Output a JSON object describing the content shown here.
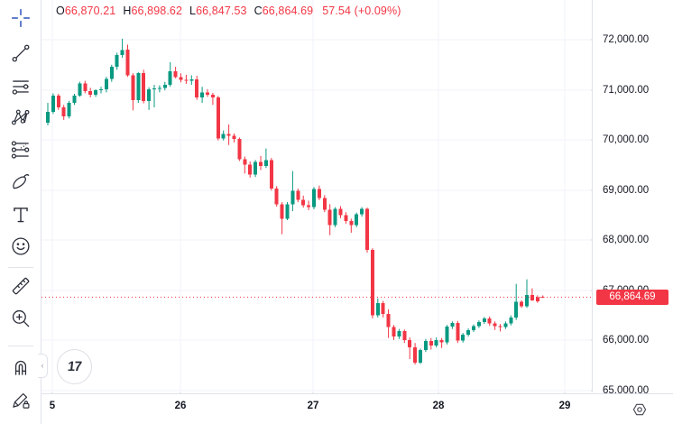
{
  "legend": {
    "o_label": "O",
    "o_value": "66,870.21",
    "h_label": "H",
    "h_value": "66,898.62",
    "l_label": "L",
    "l_value": "66,847.53",
    "c_label": "C",
    "c_value": "66,864.69",
    "change": "57.54 (+0.09%)"
  },
  "toolbar": {
    "tools": [
      "crosshair",
      "trend-line",
      "fib-retracement",
      "xabcd-pattern",
      "projection-forecast",
      "brush",
      "text",
      "emoji",
      "ruler",
      "zoom-in",
      "magnet",
      "drawing-lock"
    ],
    "active_tool": "crosshair",
    "collapse_glyph": "‹"
  },
  "logo": {
    "glyph": "17"
  },
  "colors": {
    "up": "#089981",
    "down": "#F23645",
    "grid": "#f0f3fa",
    "axis_border": "#e0e3eb",
    "axis_text": "#131722",
    "tick": "#d1d4dc",
    "accent_tool": "#4a6cc4",
    "icon": "#2a2e39",
    "last_price_bg": "#F23645"
  },
  "price_axis": {
    "ticks": [
      {
        "label": "72,000.00",
        "value": 72000
      },
      {
        "label": "71,000.00",
        "value": 71000
      },
      {
        "label": "70,000.00",
        "value": 70000
      },
      {
        "label": "69,000.00",
        "value": 69000
      },
      {
        "label": "68,000.00",
        "value": 68000
      },
      {
        "label": "67,000.00",
        "value": 67000
      },
      {
        "label": "66,000.00",
        "value": 66000
      },
      {
        "label": "65,000.00",
        "value": 65000
      }
    ],
    "last": {
      "label": "66,864.69",
      "value": 66864.69
    }
  },
  "time_axis": {
    "ticks": [
      {
        "label": "5",
        "index": 0.85
      },
      {
        "label": "26",
        "index": 24.9
      },
      {
        "label": "27",
        "index": 49.8
      },
      {
        "label": "28",
        "index": 73.4
      },
      {
        "label": "29",
        "index": 97.1
      }
    ]
  },
  "chart_data": {
    "type": "candlestick",
    "interval": "hourly",
    "y_range": [
      65000,
      72000
    ],
    "grid": true,
    "last_price": 66864.69,
    "last_candle": {
      "open": 66870.21,
      "high": 66898.62,
      "low": 66847.53,
      "close": 66864.69,
      "change": 57.54,
      "change_pct": 0.09
    },
    "candles_ohlc": [
      [
        70340,
        70740,
        70290,
        70560
      ],
      [
        70560,
        70930,
        70520,
        70880
      ],
      [
        70880,
        70920,
        70600,
        70650
      ],
      [
        70650,
        70700,
        70400,
        70470
      ],
      [
        70470,
        70780,
        70430,
        70740
      ],
      [
        70740,
        70920,
        70700,
        70880
      ],
      [
        70880,
        71160,
        70860,
        71130
      ],
      [
        71130,
        71180,
        70930,
        70970
      ],
      [
        70970,
        71040,
        70850,
        70900
      ],
      [
        70900,
        71010,
        70860,
        70990
      ],
      [
        70990,
        71060,
        70930,
        71010
      ],
      [
        71010,
        71260,
        70950,
        71220
      ],
      [
        71220,
        71500,
        71160,
        71460
      ],
      [
        71460,
        71740,
        71400,
        71690
      ],
      [
        71690,
        72020,
        71640,
        71790
      ],
      [
        71800,
        71900,
        71260,
        71290
      ],
      [
        71290,
        71330,
        70590,
        70790
      ],
      [
        70790,
        71350,
        70740,
        71330
      ],
      [
        71330,
        71400,
        70730,
        70780
      ],
      [
        70780,
        71050,
        70600,
        71010
      ],
      [
        71010,
        71100,
        70650,
        71030
      ],
      [
        71030,
        71090,
        70950,
        71040
      ],
      [
        71040,
        71160,
        70990,
        71100
      ],
      [
        71100,
        71550,
        71060,
        71370
      ],
      [
        71370,
        71460,
        71230,
        71250
      ],
      [
        71250,
        71330,
        71150,
        71200
      ],
      [
        71200,
        71300,
        71120,
        71180
      ],
      [
        71180,
        71290,
        71100,
        71210
      ],
      [
        71210,
        71280,
        70800,
        70850
      ],
      [
        70850,
        71060,
        70740,
        70950
      ],
      [
        70950,
        71010,
        70860,
        70900
      ],
      [
        70900,
        70940,
        70700,
        70850
      ],
      [
        70850,
        70880,
        69990,
        70030
      ],
      [
        70030,
        70190,
        69990,
        70120
      ],
      [
        70120,
        70310,
        69900,
        70080
      ],
      [
        70080,
        70130,
        69950,
        70020
      ],
      [
        70020,
        70050,
        69580,
        69620
      ],
      [
        69620,
        69670,
        69330,
        69510
      ],
      [
        69510,
        69570,
        69250,
        69310
      ],
      [
        69310,
        69600,
        69260,
        69560
      ],
      [
        69560,
        69680,
        69400,
        69480
      ],
      [
        69480,
        69830,
        69440,
        69600
      ],
      [
        69600,
        69640,
        68990,
        69030
      ],
      [
        69030,
        69080,
        68670,
        68720
      ],
      [
        68720,
        68760,
        68120,
        68430
      ],
      [
        68430,
        68760,
        68400,
        68720
      ],
      [
        68720,
        69380,
        68580,
        68990
      ],
      [
        68990,
        69030,
        68760,
        68810
      ],
      [
        68810,
        68890,
        68650,
        68700
      ],
      [
        68700,
        68790,
        68600,
        68660
      ],
      [
        68660,
        69060,
        68620,
        69020
      ],
      [
        69020,
        69090,
        68800,
        68840
      ],
      [
        68840,
        68900,
        68560,
        68610
      ],
      [
        68610,
        68720,
        68100,
        68300
      ],
      [
        68300,
        68660,
        68260,
        68630
      ],
      [
        68630,
        68680,
        68440,
        68500
      ],
      [
        68500,
        68560,
        68330,
        68380
      ],
      [
        68380,
        68430,
        68150,
        68300
      ],
      [
        68300,
        68550,
        68260,
        68520
      ],
      [
        68520,
        68660,
        68470,
        68630
      ],
      [
        68630,
        68650,
        67750,
        67810
      ],
      [
        67810,
        67840,
        66440,
        66500
      ],
      [
        66500,
        66840,
        66460,
        66750
      ],
      [
        66750,
        66790,
        66460,
        66530
      ],
      [
        66530,
        66620,
        66050,
        66270
      ],
      [
        66270,
        66310,
        66010,
        66080
      ],
      [
        66080,
        66230,
        66030,
        66190
      ],
      [
        66190,
        66220,
        65950,
        66010
      ],
      [
        66010,
        66060,
        65630,
        65860
      ],
      [
        65860,
        65950,
        65520,
        65560
      ],
      [
        65560,
        65840,
        65530,
        65810
      ],
      [
        65810,
        66030,
        65770,
        65990
      ],
      [
        65990,
        66050,
        65820,
        65900
      ],
      [
        65900,
        66060,
        65860,
        66010
      ],
      [
        66010,
        66050,
        65850,
        65960
      ],
      [
        65960,
        66310,
        65920,
        66280
      ],
      [
        66280,
        66380,
        66230,
        66350
      ],
      [
        66350,
        66390,
        65950,
        66000
      ],
      [
        66000,
        66150,
        65960,
        66120
      ],
      [
        66120,
        66240,
        66080,
        66210
      ],
      [
        66210,
        66320,
        66170,
        66290
      ],
      [
        66290,
        66400,
        66250,
        66370
      ],
      [
        66370,
        66470,
        66330,
        66440
      ],
      [
        66440,
        66480,
        66290,
        66340
      ],
      [
        66340,
        66380,
        66210,
        66290
      ],
      [
        66290,
        66330,
        66180,
        66270
      ],
      [
        66270,
        66380,
        66230,
        66340
      ],
      [
        66340,
        66500,
        66300,
        66460
      ],
      [
        66460,
        67130,
        66410,
        66770
      ],
      [
        66770,
        66800,
        66650,
        66680
      ],
      [
        66680,
        67220,
        66650,
        66910
      ],
      [
        66910,
        67040,
        66790,
        66800
      ],
      [
        66860,
        66900,
        66750,
        66780
      ],
      [
        66870.21,
        66898.62,
        66847.53,
        66864.69
      ]
    ]
  }
}
